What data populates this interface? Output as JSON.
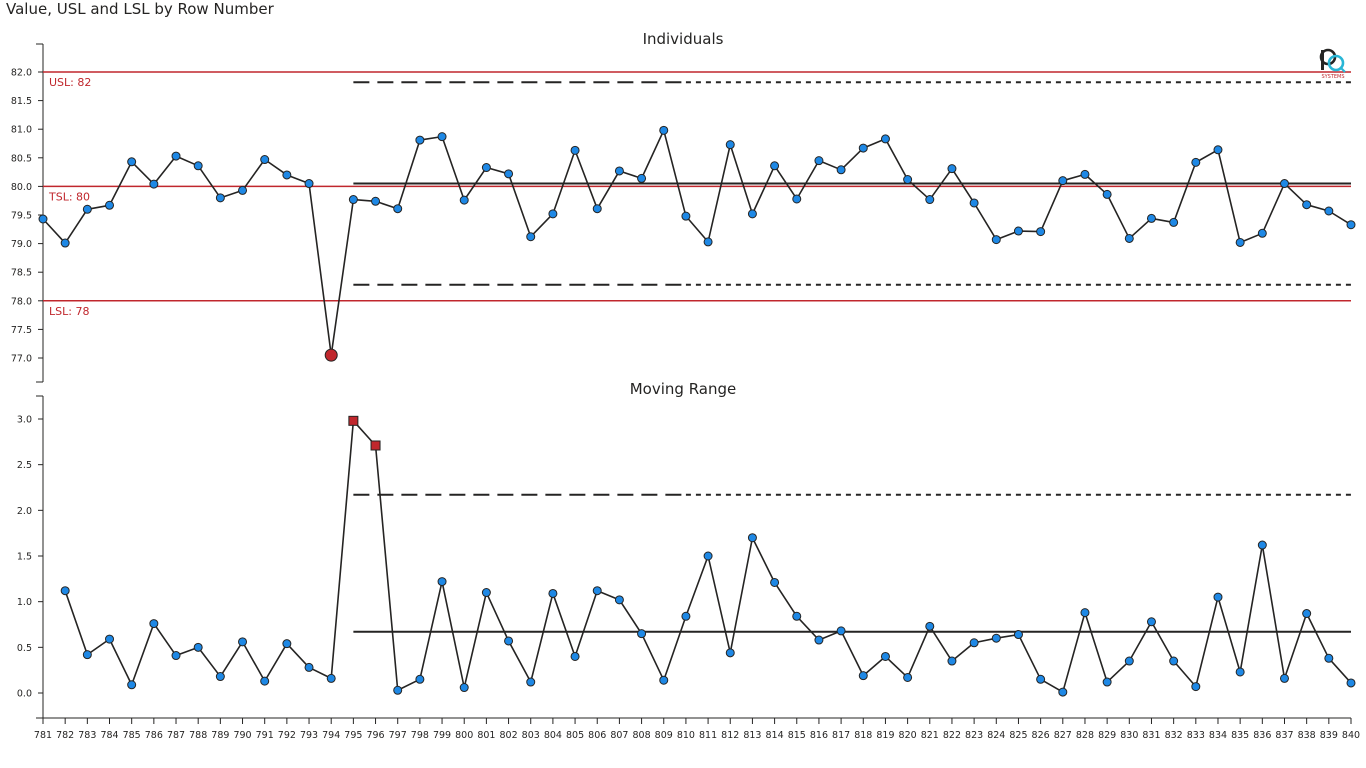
{
  "page": {
    "title": "Value, USL and LSL by Row Number",
    "logo_text": "SYSTEMS"
  },
  "colors": {
    "spec_line": "#c0272d",
    "series_line": "#252423",
    "point_fill": "#1e88e5",
    "signal_fill": "#c0272d",
    "axis": "#252423"
  },
  "chart_data": [
    {
      "type": "line",
      "title": "Individuals",
      "x": [
        781,
        782,
        783,
        784,
        785,
        786,
        787,
        788,
        789,
        790,
        791,
        792,
        793,
        794,
        795,
        796,
        797,
        798,
        799,
        800,
        801,
        802,
        803,
        804,
        805,
        806,
        807,
        808,
        809,
        810,
        811,
        812,
        813,
        814,
        815,
        816,
        817,
        818,
        819,
        820,
        821,
        822,
        823,
        824,
        825,
        826,
        827,
        828,
        829,
        830,
        831,
        832,
        833,
        834,
        835,
        836,
        837,
        838,
        839,
        840
      ],
      "values": [
        79.43,
        79.01,
        79.6,
        79.67,
        80.43,
        80.04,
        80.53,
        80.36,
        79.8,
        79.93,
        80.47,
        80.2,
        80.05,
        77.05,
        79.77,
        79.74,
        79.61,
        80.81,
        80.87,
        79.76,
        80.33,
        80.22,
        79.12,
        79.52,
        80.63,
        79.61,
        80.27,
        80.14,
        80.98,
        79.48,
        79.03,
        80.73,
        79.52,
        80.36,
        79.78,
        80.45,
        80.29,
        80.67,
        80.83,
        80.12,
        79.77,
        80.31,
        79.71,
        79.07,
        79.22,
        79.21,
        80.1,
        80.21,
        79.86,
        79.09,
        79.44,
        79.37,
        80.42,
        80.64,
        79.02,
        79.18,
        80.05,
        79.68,
        79.57,
        79.33
      ],
      "signal_points": [
        794
      ],
      "spec_lines": [
        {
          "label": "USL: 82",
          "value": 82
        },
        {
          "label": "TSL: 80",
          "value": 80
        },
        {
          "label": "LSL: 78",
          "value": 78
        }
      ],
      "center_line": {
        "value": 80.05,
        "start": 795
      },
      "control_limits": {
        "upper": 81.82,
        "lower": 78.28,
        "start": 795
      },
      "y_ticks": [
        "77.0",
        "77.5",
        "78.0",
        "78.5",
        "79.0",
        "79.5",
        "80.0",
        "80.5",
        "81.0",
        "81.5",
        "82.0"
      ],
      "ylim": [
        76.8,
        82.5
      ]
    },
    {
      "type": "line",
      "title": "Moving Range",
      "x": [
        782,
        783,
        784,
        785,
        786,
        787,
        788,
        789,
        790,
        791,
        792,
        793,
        794,
        795,
        796,
        797,
        798,
        799,
        800,
        801,
        802,
        803,
        804,
        805,
        806,
        807,
        808,
        809,
        810,
        811,
        812,
        813,
        814,
        815,
        816,
        817,
        818,
        819,
        820,
        821,
        822,
        823,
        824,
        825,
        826,
        827,
        828,
        829,
        830,
        831,
        832,
        833,
        834,
        835,
        836,
        837,
        838,
        839,
        840
      ],
      "values": [
        1.12,
        0.42,
        0.59,
        0.09,
        0.76,
        0.41,
        0.5,
        0.18,
        0.56,
        0.13,
        0.54,
        0.28,
        0.16,
        2.98,
        2.71,
        0.03,
        0.15,
        1.22,
        0.06,
        1.1,
        0.57,
        0.12,
        1.09,
        0.4,
        1.12,
        1.02,
        0.65,
        0.14,
        0.84,
        1.5,
        0.44,
        1.7,
        1.21,
        0.84,
        0.58,
        0.68,
        0.19,
        0.4,
        0.17,
        0.73,
        0.35,
        0.55,
        0.6,
        0.64,
        0.15,
        0.01,
        0.88,
        0.12,
        0.35,
        0.78,
        0.35,
        0.07,
        1.05,
        0.23,
        1.62,
        0.16,
        0.87,
        0.38,
        0.11
      ],
      "signal_points": [
        795,
        796
      ],
      "center_line": {
        "value": 0.67,
        "start": 795
      },
      "control_limits": {
        "upper": 2.17,
        "start": 795
      },
      "y_ticks": [
        "0.0",
        "0.5",
        "1.0",
        "1.5",
        "2.0",
        "2.5",
        "3.0"
      ],
      "ylim": [
        -0.3,
        3.35
      ]
    }
  ],
  "x_axis": {
    "labels": [
      "781",
      "782",
      "783",
      "784",
      "785",
      "786",
      "787",
      "788",
      "789",
      "790",
      "791",
      "792",
      "793",
      "794",
      "795",
      "796",
      "797",
      "798",
      "799",
      "800",
      "801",
      "802",
      "803",
      "804",
      "805",
      "806",
      "807",
      "808",
      "809",
      "810",
      "811",
      "812",
      "813",
      "814",
      "815",
      "816",
      "817",
      "818",
      "819",
      "820",
      "821",
      "822",
      "823",
      "824",
      "825",
      "826",
      "827",
      "828",
      "829",
      "830",
      "831",
      "832",
      "833",
      "834",
      "835",
      "836",
      "837",
      "838",
      "839",
      "840"
    ]
  }
}
